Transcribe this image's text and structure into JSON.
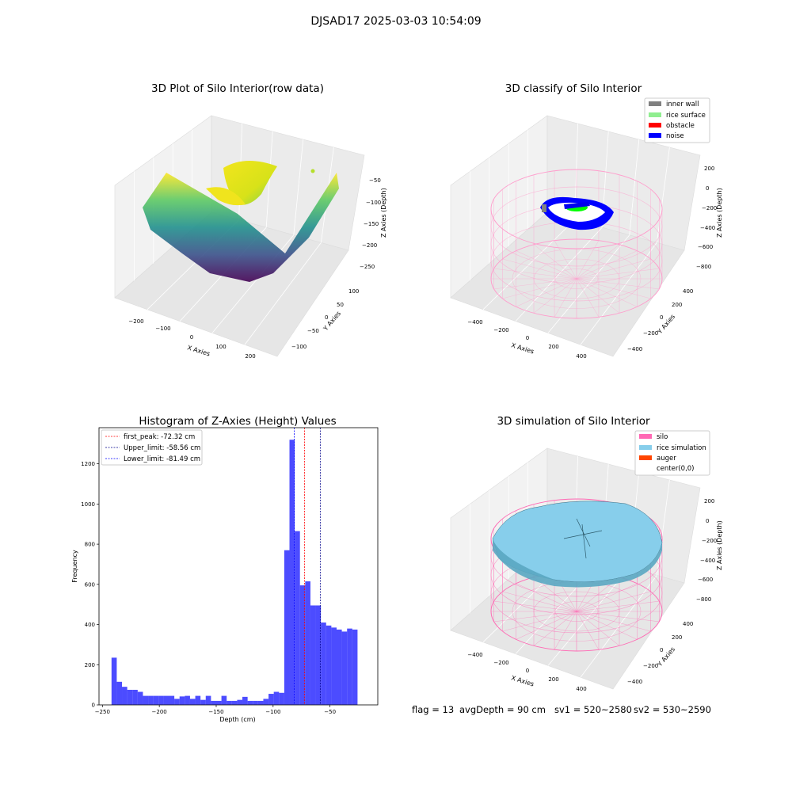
{
  "figure_title": "DJSAD17 2025-03-03 10:54:09",
  "chart_data": [
    {
      "type": "scatter",
      "projection": "3d",
      "title": "3D Plot of Silo Interior(row data)",
      "xlabel": "X Axies",
      "ylabel": "Y Axies",
      "zlabel": "Z Axies (Depth)",
      "x_ticks": [
        "−200",
        "−100",
        "0",
        "100",
        "200"
      ],
      "y_ticks": [
        "−100",
        "−50",
        "0",
        "50",
        "100"
      ],
      "z_ticks": [
        "−50",
        "−100",
        "−150",
        "−200",
        "−250"
      ],
      "xlim": [
        -260,
        260
      ],
      "ylim": [
        -130,
        130
      ],
      "zlim": [
        -270,
        -20
      ],
      "colormap": "viridis",
      "legend": null
    },
    {
      "type": "scatter",
      "projection": "3d",
      "title": "3D classify of Silo Interior",
      "xlabel": "X Axies",
      "ylabel": "Y Axies",
      "zlabel": "Z Axies (Depth)",
      "x_ticks": [
        "−400",
        "−200",
        "0",
        "200",
        "400"
      ],
      "y_ticks": [
        "−400",
        "−200",
        "0",
        "200",
        "400"
      ],
      "z_ticks": [
        "200",
        "0",
        "−200",
        "−400",
        "−600",
        "−800"
      ],
      "legend_placement": "top-right",
      "legend": [
        {
          "label": "inner wall",
          "color": "#808080"
        },
        {
          "label": "rice surface",
          "color": "#90ee90"
        },
        {
          "label": "obstacle",
          "color": "#ff0000"
        },
        {
          "label": "noise",
          "color": "#0000ff"
        }
      ],
      "wireframe_color": "#ff69b4"
    },
    {
      "type": "bar",
      "title": "Histogram of Z-Axies (Height) Values",
      "xlabel": "Depth (cm)",
      "ylabel": "Frequency",
      "xlim": [
        -253,
        -8
      ],
      "ylim": [
        0,
        1380
      ],
      "x_ticks": [
        -250,
        -200,
        -150,
        -100,
        -50
      ],
      "y_ticks": [
        0,
        200,
        400,
        600,
        800,
        1000,
        1200
      ],
      "bin_start": -242,
      "bin_width": 4.6,
      "bar_color": "#0000ff",
      "values": [
        235,
        115,
        90,
        75,
        75,
        65,
        45,
        45,
        45,
        45,
        45,
        45,
        30,
        42,
        45,
        30,
        45,
        25,
        45,
        20,
        20,
        45,
        20,
        20,
        25,
        40,
        20,
        20,
        20,
        30,
        55,
        65,
        60,
        770,
        1320,
        865,
        595,
        615,
        495,
        495,
        410,
        395,
        385,
        375,
        365,
        380,
        375
      ],
      "vlines": [
        {
          "label": "first_peak: -72.32 cm",
          "x": -72.32,
          "color": "#ff0000"
        },
        {
          "label": "Upper_limit: -58.56 cm",
          "x": -58.56,
          "color": "#00008b"
        },
        {
          "label": "Lower_limit: -81.49 cm",
          "x": -81.49,
          "color": "#0000ff"
        }
      ],
      "legend_placement": "top-left"
    },
    {
      "type": "scatter",
      "projection": "3d",
      "title": "3D simulation of Silo Interior",
      "xlabel": "X Axies",
      "ylabel": "Y Axies",
      "zlabel": "Z Axies (Depth)",
      "x_ticks": [
        "−400",
        "−200",
        "0",
        "200",
        "400"
      ],
      "y_ticks": [
        "−400",
        "−200",
        "0",
        "200",
        "400"
      ],
      "z_ticks": [
        "200",
        "0",
        "−200",
        "−400",
        "−600",
        "−800"
      ],
      "legend_placement": "top-right",
      "legend": [
        {
          "label": "silo",
          "color": "#ff69b4"
        },
        {
          "label": "rice simulation",
          "color": "#87ceeb"
        },
        {
          "label": "auger",
          "color": "#ff4500"
        },
        {
          "label": "center(0,0)",
          "color": "#ffffff"
        }
      ]
    }
  ],
  "status_line": {
    "flag": "flag = 13",
    "avg_depth": "avgDepth = 90 cm",
    "sv1": "sv1 = 520~2580",
    "sv2": "sv2 = 530~2590"
  }
}
